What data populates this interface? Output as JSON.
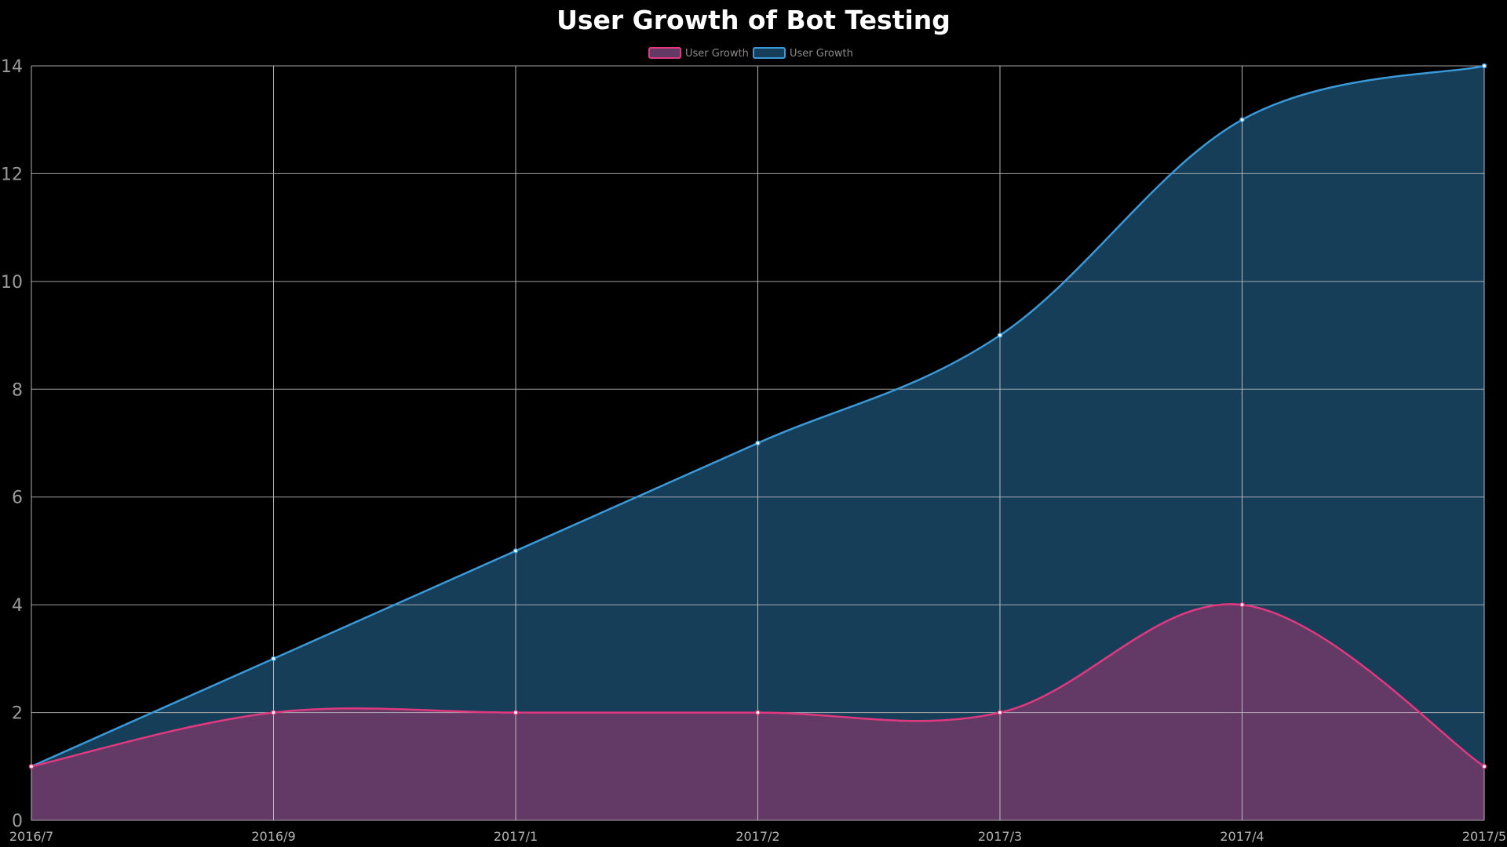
{
  "chart_data": {
    "type": "area",
    "title": "User Growth of Bot Testing",
    "categories": [
      "2016/7",
      "2016/9",
      "2017/1",
      "2017/2",
      "2017/3",
      "2017/4",
      "2017/5"
    ],
    "ylim": [
      0,
      14
    ],
    "yticks": [
      "0",
      "2",
      "4",
      "6",
      "8",
      "10",
      "12",
      "14"
    ],
    "grid": true,
    "legend_position": "top-center",
    "smooth": true,
    "series": [
      {
        "name": "User Growth",
        "color": "#e0397f",
        "fill": "#633a66",
        "values": [
          1,
          2,
          2,
          2,
          2,
          4,
          1
        ]
      },
      {
        "name": "User Growth",
        "color": "#3a9ad9",
        "fill": "#173e58",
        "values": [
          1,
          3,
          5,
          7,
          9,
          13,
          14
        ]
      }
    ]
  }
}
